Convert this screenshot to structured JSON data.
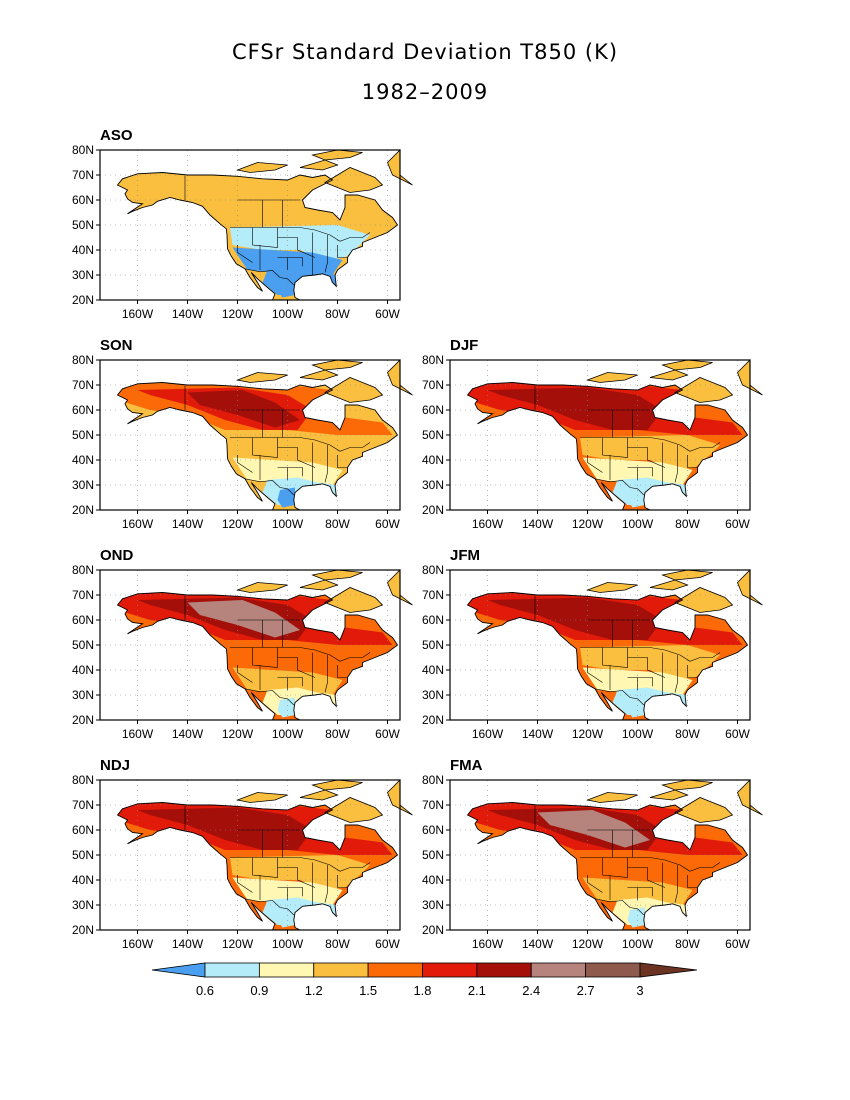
{
  "figure": {
    "title": "CFSr Standard Deviation T850 (K)",
    "subtitle": "1982–2009"
  },
  "panels": [
    {
      "label": "ASO",
      "intensity": 0
    },
    {
      "label": "SON",
      "intensity": 1
    },
    {
      "label": "DJF",
      "intensity": 3
    },
    {
      "label": "OND",
      "intensity": 2
    },
    {
      "label": "JFM",
      "intensity": 3
    },
    {
      "label": "NDJ",
      "intensity": 3
    },
    {
      "label": "FMA",
      "intensity": 2
    }
  ],
  "axes": {
    "lat_ticks": [
      "80N",
      "70N",
      "60N",
      "50N",
      "40N",
      "30N",
      "20N"
    ],
    "lon_ticks": [
      "160W",
      "140W",
      "120W",
      "100W",
      "80W",
      "60W"
    ],
    "lat_range": [
      20,
      80
    ],
    "lon_range": [
      -175,
      -55
    ]
  },
  "colorbar": {
    "levels": [
      "0.6",
      "0.9",
      "1.2",
      "1.5",
      "1.8",
      "2.1",
      "2.4",
      "2.7",
      "3"
    ],
    "colors": [
      "#4a9ff0",
      "#b4ecfa",
      "#fff7b2",
      "#fbbf40",
      "#fb6a07",
      "#e21a0a",
      "#a50f0a",
      "#b6847c",
      "#8e5a4e",
      "#6a3322"
    ]
  }
}
